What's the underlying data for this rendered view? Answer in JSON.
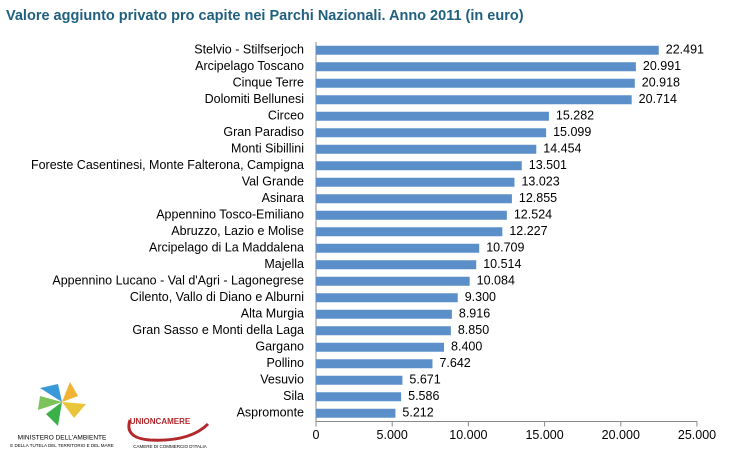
{
  "chart_data": {
    "type": "bar",
    "orientation": "horizontal",
    "title": "Valore aggiunto privato pro capite nei Parchi Nazionali. Anno 2011 (in euro)",
    "categories": [
      "Stelvio - Stilfserjoch",
      "Arcipelago Toscano",
      "Cinque Terre",
      "Dolomiti Bellunesi",
      "Circeo",
      "Gran Paradiso",
      "Monti Sibillini",
      "Foreste Casentinesi, Monte Falterona, Campigna",
      "Val Grande",
      "Asinara",
      "Appennino Tosco-Emiliano",
      "Abruzzo, Lazio e Molise",
      "Arcipelago di La Maddalena",
      "Majella",
      "Appennino Lucano - Val d'Agri - Lagonegrese",
      "Cilento, Vallo di Diano e Alburni",
      "Alta Murgia",
      "Gran Sasso e Monti della Laga",
      "Gargano",
      "Pollino",
      "Vesuvio",
      "Sila",
      "Aspromonte"
    ],
    "values": [
      22491,
      20991,
      20918,
      20714,
      15282,
      15099,
      14454,
      13501,
      13023,
      12855,
      12524,
      12227,
      10709,
      10514,
      10084,
      9300,
      8916,
      8850,
      8400,
      7642,
      5671,
      5586,
      5212
    ],
    "value_labels": [
      "22.491",
      "20.991",
      "20.918",
      "20.714",
      "15.282",
      "15.099",
      "14.454",
      "13.501",
      "13.023",
      "12.855",
      "12.524",
      "12.227",
      "10.709",
      "10.514",
      "10.084",
      "9.300",
      "8.916",
      "8.850",
      "8.400",
      "7.642",
      "5.671",
      "5.586",
      "5.212"
    ],
    "color": "#5b8fc9",
    "xlim": [
      0,
      25000
    ],
    "xticks": [
      0,
      {
        "value": 5000,
        "label": "5.000"
      },
      {
        "value": 10000,
        "label": "10.000"
      },
      {
        "value": 15000,
        "label": "15.000"
      },
      {
        "value": 20000,
        "label": "20.000"
      },
      {
        "value": 25000,
        "label": "25.000"
      }
    ],
    "grid": false
  },
  "logos": {
    "ministry_line1": "MINISTERO DELL'AMBIENTE",
    "ministry_line2": "E DELLA TUTELA DEL TERRITORIO E DEL MARE",
    "union_name": "UNIONCAMERE",
    "union_sub": "CAMERE DI COMMERCIO D'ITALIA"
  }
}
